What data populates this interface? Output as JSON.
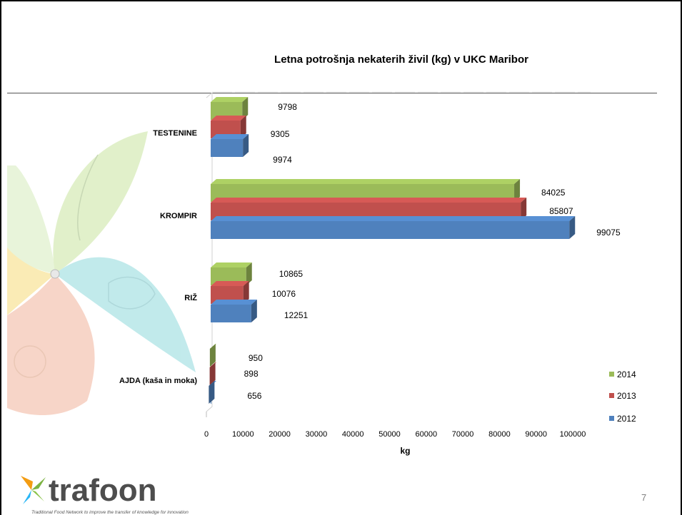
{
  "slide": {
    "page_number": "7"
  },
  "logo": {
    "name": "trafoon",
    "tagline": "Traditional Food Network to improve the transfer of knowledge for innovation"
  },
  "chart_data": {
    "type": "bar",
    "orientation": "horizontal",
    "style": "3d",
    "title": "Letna potrošnja nekaterih živil (kg) v UKC Maribor",
    "xlabel": "kg",
    "ylabel": "",
    "xlim": [
      0,
      100000
    ],
    "xticks": [
      0,
      10000,
      20000,
      30000,
      40000,
      50000,
      60000,
      70000,
      80000,
      90000,
      100000
    ],
    "categories": [
      "TESTENINE",
      "KROMPIR",
      "RIŽ",
      "AJDA (kaša in moka)"
    ],
    "series": [
      {
        "name": "2014",
        "color": "#9bbb59",
        "values": [
          9798,
          84025,
          10865,
          950
        ]
      },
      {
        "name": "2013",
        "color": "#c0504d",
        "values": [
          9305,
          85807,
          10076,
          898
        ]
      },
      {
        "name": "2012",
        "color": "#4f81bd",
        "values": [
          9974,
          99075,
          12251,
          656
        ]
      }
    ],
    "legend": "right",
    "grid": false
  }
}
